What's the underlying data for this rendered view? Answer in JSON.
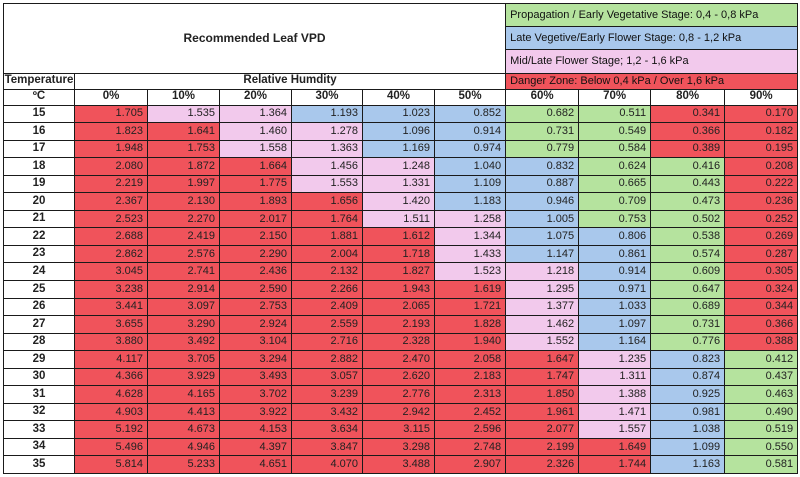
{
  "chart_data": {
    "type": "table",
    "title": "Recommended Leaf VPD",
    "row_header_label": "Temperature",
    "row_header_unit": "ºC",
    "column_group_label": "Relative Humdity",
    "legend": [
      {
        "text": "Propagation / Early Vegetative Stage: 0,4 - 0,8 kPa",
        "color": "#b5e39e"
      },
      {
        "text": "Late Vegetive/Early Flower Stage: 0,8 - 1,2 kPa",
        "color": "#a9c8ec"
      },
      {
        "text": "Mid/Late Flower Stage; 1,2 - 1,6 kPa",
        "color": "#f2c9ec"
      },
      {
        "text": "Danger Zone: Below 0,4 kPa / Over 1,6 kPa",
        "color": "#f0535b"
      }
    ],
    "colors": {
      "propagation": "#b5e39e",
      "late_veg": "#a9c8ec",
      "mid_late_flower": "#f2c9ec",
      "danger": "#f0535b"
    },
    "columns": [
      "0%",
      "10%",
      "20%",
      "30%",
      "40%",
      "50%",
      "60%",
      "70%",
      "80%",
      "90%"
    ],
    "rows": [
      {
        "temp": "15",
        "values": [
          "1.705",
          "1.535",
          "1.364",
          "1.193",
          "1.023",
          "0.852",
          "0.682",
          "0.511",
          "0.341",
          "0.170"
        ]
      },
      {
        "temp": "16",
        "values": [
          "1.823",
          "1.641",
          "1.460",
          "1.278",
          "1.096",
          "0.914",
          "0.731",
          "0.549",
          "0.366",
          "0.182"
        ]
      },
      {
        "temp": "17",
        "values": [
          "1.948",
          "1.753",
          "1.558",
          "1.363",
          "1.169",
          "0.974",
          "0.779",
          "0.584",
          "0.389",
          "0.195"
        ]
      },
      {
        "temp": "18",
        "values": [
          "2.080",
          "1.872",
          "1.664",
          "1.456",
          "1.248",
          "1.040",
          "0.832",
          "0.624",
          "0.416",
          "0.208"
        ]
      },
      {
        "temp": "19",
        "values": [
          "2.219",
          "1.997",
          "1.775",
          "1.553",
          "1.331",
          "1.109",
          "0.887",
          "0.665",
          "0.443",
          "0.222"
        ]
      },
      {
        "temp": "20",
        "values": [
          "2.367",
          "2.130",
          "1.893",
          "1.656",
          "1.420",
          "1.183",
          "0.946",
          "0.709",
          "0.473",
          "0.236"
        ]
      },
      {
        "temp": "21",
        "values": [
          "2.523",
          "2.270",
          "2.017",
          "1.764",
          "1.511",
          "1.258",
          "1.005",
          "0.753",
          "0.502",
          "0.252"
        ]
      },
      {
        "temp": "22",
        "values": [
          "2.688",
          "2.419",
          "2.150",
          "1.881",
          "1.612",
          "1.344",
          "1.075",
          "0.806",
          "0.538",
          "0.269"
        ]
      },
      {
        "temp": "23",
        "values": [
          "2.862",
          "2.576",
          "2.290",
          "2.004",
          "1.718",
          "1.433",
          "1.147",
          "0.861",
          "0.574",
          "0.287"
        ]
      },
      {
        "temp": "24",
        "values": [
          "3.045",
          "2.741",
          "2.436",
          "2.132",
          "1.827",
          "1.523",
          "1.218",
          "0.914",
          "0.609",
          "0.305"
        ]
      },
      {
        "temp": "25",
        "values": [
          "3.238",
          "2.914",
          "2.590",
          "2.266",
          "1.943",
          "1.619",
          "1.295",
          "0.971",
          "0.647",
          "0.324"
        ]
      },
      {
        "temp": "26",
        "values": [
          "3.441",
          "3.097",
          "2.753",
          "2.409",
          "2.065",
          "1.721",
          "1.377",
          "1.033",
          "0.689",
          "0.344"
        ]
      },
      {
        "temp": "27",
        "values": [
          "3.655",
          "3.290",
          "2.924",
          "2.559",
          "2.193",
          "1.828",
          "1.462",
          "1.097",
          "0.731",
          "0.366"
        ]
      },
      {
        "temp": "28",
        "values": [
          "3.880",
          "3.492",
          "3.104",
          "2.716",
          "2.328",
          "1.940",
          "1.552",
          "1.164",
          "0.776",
          "0.388"
        ]
      },
      {
        "temp": "29",
        "values": [
          "4.117",
          "3.705",
          "3.294",
          "2.882",
          "2.470",
          "2.058",
          "1.647",
          "1.235",
          "0.823",
          "0.412"
        ]
      },
      {
        "temp": "30",
        "values": [
          "4.366",
          "3.929",
          "3.493",
          "3.057",
          "2.620",
          "2.183",
          "1.747",
          "1.311",
          "0.874",
          "0.437"
        ]
      },
      {
        "temp": "31",
        "values": [
          "4.628",
          "4.165",
          "3.702",
          "3.239",
          "2.776",
          "2.313",
          "1.850",
          "1.388",
          "0.925",
          "0.463"
        ]
      },
      {
        "temp": "32",
        "values": [
          "4.903",
          "4.413",
          "3.922",
          "3.432",
          "2.942",
          "2.452",
          "1.961",
          "1.471",
          "0.981",
          "0.490"
        ]
      },
      {
        "temp": "33",
        "values": [
          "5.192",
          "4.673",
          "4.153",
          "3.634",
          "3.115",
          "2.596",
          "2.077",
          "1.557",
          "1.038",
          "0.519"
        ]
      },
      {
        "temp": "34",
        "values": [
          "5.496",
          "4.946",
          "4.397",
          "3.847",
          "3.298",
          "2.748",
          "2.199",
          "1.649",
          "1.099",
          "0.550"
        ]
      },
      {
        "temp": "35",
        "values": [
          "5.814",
          "5.233",
          "4.651",
          "4.070",
          "3.488",
          "2.907",
          "2.326",
          "1.744",
          "1.163",
          "0.581"
        ]
      }
    ]
  }
}
